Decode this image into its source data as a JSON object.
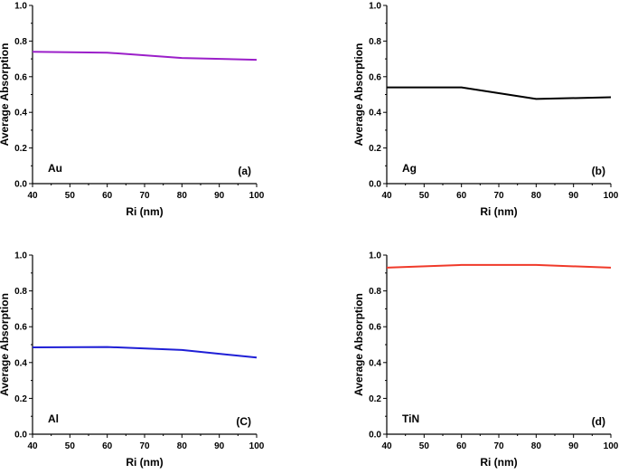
{
  "chart_data": [
    {
      "type": "line",
      "material": "Au",
      "panel_tag": "(a)",
      "xlabel": "Ri (nm)",
      "ylabel": "Average Absorption",
      "xlim": [
        40,
        100
      ],
      "ylim": [
        0,
        1.0
      ],
      "xticks": [
        40,
        50,
        60,
        70,
        80,
        90,
        100
      ],
      "yticks": [
        "0.0",
        "0.2",
        "0.4",
        "0.6",
        "0.8",
        "1.0"
      ],
      "x": [
        40,
        60,
        80,
        100
      ],
      "values": [
        0.74,
        0.735,
        0.705,
        0.695
      ],
      "color": "#9b1fc9"
    },
    {
      "type": "line",
      "material": "Ag",
      "panel_tag": "(b)",
      "xlabel": "Ri (nm)",
      "ylabel": "Average Absorption",
      "xlim": [
        40,
        100
      ],
      "ylim": [
        0,
        1.0
      ],
      "xticks": [
        40,
        50,
        60,
        70,
        80,
        90,
        100
      ],
      "yticks": [
        "0.0",
        "0.2",
        "0.4",
        "0.6",
        "0.8",
        "1.0"
      ],
      "x": [
        40,
        60,
        80,
        100
      ],
      "values": [
        0.54,
        0.54,
        0.475,
        0.485
      ],
      "color": "#000000"
    },
    {
      "type": "line",
      "material": "Al",
      "panel_tag": "(C)",
      "xlabel": "Ri (nm)",
      "ylabel": "Average Absorption",
      "xlim": [
        40,
        100
      ],
      "ylim": [
        0,
        1.0
      ],
      "xticks": [
        40,
        50,
        60,
        70,
        80,
        90,
        100
      ],
      "yticks": [
        "0.0",
        "0.2",
        "0.4",
        "0.6",
        "0.8",
        "1.0"
      ],
      "x": [
        40,
        60,
        80,
        100
      ],
      "values": [
        0.485,
        0.487,
        0.47,
        0.428
      ],
      "color": "#1f1fd6"
    },
    {
      "type": "line",
      "material": "TiN",
      "panel_tag": "(d)",
      "xlabel": "Ri (nm)",
      "ylabel": "Average Absorption",
      "xlim": [
        40,
        100
      ],
      "ylim": [
        0,
        1.0
      ],
      "xticks": [
        40,
        50,
        60,
        70,
        80,
        90,
        100
      ],
      "yticks": [
        "0.0",
        "0.2",
        "0.4",
        "0.6",
        "0.8",
        "1.0"
      ],
      "x": [
        40,
        60,
        80,
        100
      ],
      "values": [
        0.93,
        0.945,
        0.945,
        0.93
      ],
      "color": "#f03a2a"
    }
  ]
}
